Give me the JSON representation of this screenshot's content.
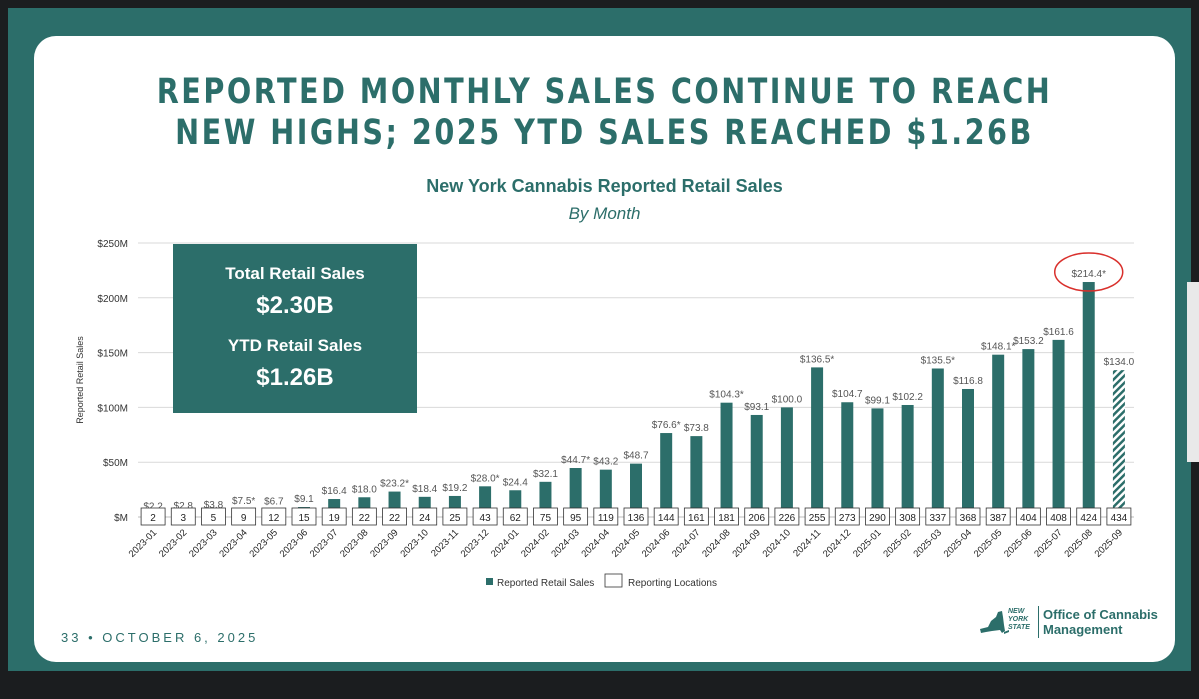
{
  "slide": {
    "title_line1": "REPORTED MONTHLY SALES CONTINUE TO REACH",
    "title_line2": "NEW HIGHS; 2025 YTD SALES REACHED $1.26B",
    "footer_page": "33",
    "footer_separator": "•",
    "footer_date": "OCTOBER 6, 2025",
    "logo_state_line1": "NEW",
    "logo_state_line2": "YORK",
    "logo_state_line3": "STATE",
    "logo_office_line1": "Office of Cannabis",
    "logo_office_line2": "Management"
  },
  "summary": {
    "total_label": "Total Retail Sales",
    "total_value": "$2.30B",
    "ytd_label": "YTD Retail Sales",
    "ytd_value": "$1.26B"
  },
  "colors": {
    "teal": "#2c6e6a",
    "highlight_circle": "#d9302c"
  },
  "chart_data": {
    "type": "bar",
    "title": "New York Cannabis Reported Retail Sales",
    "subtitle": "By Month",
    "ylabel": "Reported Retail Sales",
    "ylim": [
      0,
      250
    ],
    "yticks": [
      0,
      50,
      100,
      150,
      200,
      250
    ],
    "ytick_labels": [
      "$M",
      "$50M",
      "$100M",
      "$150M",
      "$200M",
      "$250M"
    ],
    "categories": [
      "2023-01",
      "2023-02",
      "2023-03",
      "2023-04",
      "2023-05",
      "2023-06",
      "2023-07",
      "2023-08",
      "2023-09",
      "2023-10",
      "2023-11",
      "2023-12",
      "2024-01",
      "2024-02",
      "2024-03",
      "2024-04",
      "2024-05",
      "2024-06",
      "2024-07",
      "2024-08",
      "2024-09",
      "2024-10",
      "2024-11",
      "2024-12",
      "2025-01",
      "2025-02",
      "2025-03",
      "2025-04",
      "2025-05",
      "2025-06",
      "2025-07",
      "2025-08",
      "2025-09"
    ],
    "values": [
      2.2,
      2.8,
      3.8,
      7.5,
      6.7,
      9.1,
      16.4,
      18.0,
      23.2,
      18.4,
      19.2,
      28.0,
      24.4,
      32.1,
      44.7,
      43.2,
      48.7,
      76.6,
      73.8,
      104.3,
      93.1,
      100.0,
      136.5,
      104.7,
      99.1,
      102.2,
      135.5,
      116.8,
      148.1,
      153.2,
      161.6,
      214.4,
      134.0
    ],
    "value_labels": [
      "$2.2",
      "$2.8",
      "$3.8",
      "$7.5*",
      "$6.7",
      "$9.1",
      "$16.4",
      "$18.0",
      "$23.2*",
      "$18.4",
      "$19.2",
      "$28.0*",
      "$24.4",
      "$32.1",
      "$44.7*",
      "$43.2",
      "$48.7",
      "$76.6*",
      "$73.8",
      "$104.3*",
      "$93.1",
      "$100.0",
      "$136.5*",
      "$104.7",
      "$99.1",
      "$102.2",
      "$135.5*",
      "$116.8",
      "$148.1*",
      "$153.2",
      "$161.6",
      "$214.4*",
      "$134.0"
    ],
    "reporting_locations": [
      2,
      3,
      5,
      9,
      12,
      15,
      19,
      22,
      22,
      24,
      25,
      43,
      62,
      75,
      95,
      119,
      136,
      144,
      161,
      181,
      206,
      226,
      255,
      273,
      290,
      308,
      337,
      368,
      387,
      404,
      408,
      424,
      434
    ],
    "partial_month": "2025-09",
    "highlighted_month": "2025-08",
    "legend": [
      "Reported Retail Sales",
      "Reporting Locations"
    ],
    "legend_position": "bottom"
  }
}
